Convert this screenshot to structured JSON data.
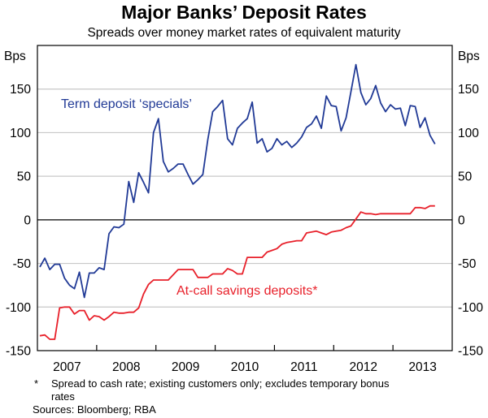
{
  "chart_data": {
    "type": "line",
    "title": "Major Banks’ Deposit Rates",
    "subtitle": "Spreads over money market rates of equivalent maturity",
    "ylabel_left": "Bps",
    "ylabel_right": "Bps",
    "ylim": [
      -150,
      200
    ],
    "yticks": [
      -150,
      -100,
      -50,
      0,
      50,
      100,
      150
    ],
    "xlim": [
      "2007-01",
      "2013-12"
    ],
    "xtick_labels": [
      "2007",
      "2008",
      "2009",
      "2010",
      "2011",
      "2012",
      "2013"
    ],
    "grid": true,
    "x": [
      "2007-01",
      "2007-02",
      "2007-03",
      "2007-04",
      "2007-05",
      "2007-06",
      "2007-07",
      "2007-08",
      "2007-09",
      "2007-10",
      "2007-11",
      "2007-12",
      "2008-01",
      "2008-02",
      "2008-03",
      "2008-04",
      "2008-05",
      "2008-06",
      "2008-07",
      "2008-08",
      "2008-09",
      "2008-10",
      "2008-11",
      "2008-12",
      "2009-01",
      "2009-02",
      "2009-03",
      "2009-04",
      "2009-05",
      "2009-06",
      "2009-07",
      "2009-08",
      "2009-09",
      "2009-10",
      "2009-11",
      "2009-12",
      "2010-01",
      "2010-02",
      "2010-03",
      "2010-04",
      "2010-05",
      "2010-06",
      "2010-07",
      "2010-08",
      "2010-09",
      "2010-10",
      "2010-11",
      "2010-12",
      "2011-01",
      "2011-02",
      "2011-03",
      "2011-04",
      "2011-05",
      "2011-06",
      "2011-07",
      "2011-08",
      "2011-09",
      "2011-10",
      "2011-11",
      "2011-12",
      "2012-01",
      "2012-02",
      "2012-03",
      "2012-04",
      "2012-05",
      "2012-06",
      "2012-07",
      "2012-08",
      "2012-09",
      "2012-10",
      "2012-11",
      "2012-12",
      "2013-01",
      "2013-02",
      "2013-03",
      "2013-04",
      "2013-05",
      "2013-06",
      "2013-07",
      "2013-08",
      "2013-09"
    ],
    "series": [
      {
        "name": "Term deposit ‘specials’",
        "color": "#213a96",
        "values": [
          -54,
          -44,
          -57,
          -51,
          -51,
          -67,
          -75,
          -79,
          -60,
          -89,
          -61,
          -61,
          -55,
          -57,
          -16,
          -8,
          -9,
          -5,
          44,
          20,
          54,
          43,
          31,
          100,
          116,
          67,
          55,
          59,
          64,
          64,
          52,
          41,
          46,
          52,
          92,
          124,
          130,
          137,
          93,
          86,
          105,
          111,
          116,
          135,
          88,
          93,
          78,
          82,
          93,
          86,
          90,
          83,
          88,
          95,
          106,
          110,
          119,
          105,
          142,
          131,
          130,
          102,
          117,
          147,
          178,
          146,
          132,
          139,
          154,
          134,
          124,
          132,
          127,
          128,
          108,
          131,
          130,
          106,
          117,
          97,
          87
        ]
      },
      {
        "name": "At-call savings deposits*",
        "color": "#e8202a",
        "values": [
          -133,
          -132,
          -137,
          -137,
          -101,
          -100,
          -100,
          -108,
          -104,
          -104,
          -115,
          -110,
          -111,
          -115,
          -111,
          -106,
          -107,
          -107,
          -106,
          -106,
          -101,
          -85,
          -74,
          -69,
          -69,
          -69,
          -69,
          -63,
          -57,
          -57,
          -57,
          -57,
          -66,
          -66,
          -66,
          -62,
          -62,
          -62,
          -56,
          -58,
          -62,
          -62,
          -43,
          -43,
          -43,
          -43,
          -37,
          -35,
          -33,
          -28,
          -26,
          -25,
          -24,
          -24,
          -15,
          -14,
          -13,
          -15,
          -17,
          -14,
          -13,
          -12,
          -9,
          -7,
          1,
          9,
          7,
          7,
          6,
          7,
          7,
          7,
          7,
          7,
          7,
          7,
          14,
          14,
          13,
          16,
          16
        ]
      }
    ],
    "footnote_marker": "*",
    "footnote": "Spread to cash rate; existing customers only; excludes temporary bonus",
    "footnote_cont": "rates",
    "sources": "Sources: Bloomberg; RBA"
  }
}
